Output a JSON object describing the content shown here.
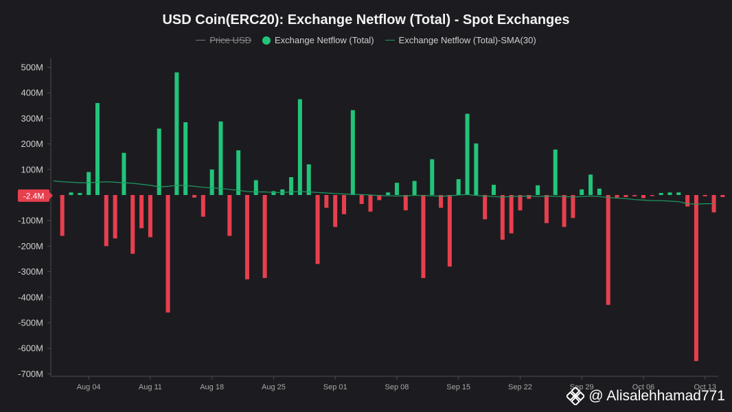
{
  "chart_data": {
    "type": "bar",
    "title": "USD Coin(ERC20): Exchange Netflow (Total) - Spot Exchanges",
    "legend": [
      {
        "label": "Price USD",
        "hidden": true
      },
      {
        "label": "Exchange Netflow (Total)"
      },
      {
        "label": "Exchange Netflow (Total)-SMA(30)"
      }
    ],
    "ylim": [
      -720,
      540
    ],
    "yticks": [
      500,
      400,
      300,
      200,
      100,
      -100,
      -200,
      -300,
      -400,
      -500,
      -600,
      -700
    ],
    "ytick_labels": [
      "500M",
      "400M",
      "300M",
      "200M",
      "100M",
      "-100M",
      "-200M",
      "-300M",
      "-400M",
      "-500M",
      "-600M",
      "-700M"
    ],
    "current_value_label": "-2.4M",
    "x_labels": [
      {
        "label": "Aug 04",
        "day": 4
      },
      {
        "label": "Aug 11",
        "day": 11
      },
      {
        "label": "Aug 18",
        "day": 18
      },
      {
        "label": "Aug 25",
        "day": 25
      },
      {
        "label": "Sep 01",
        "day": 32
      },
      {
        "label": "Sep 08",
        "day": 39
      },
      {
        "label": "Sep 15",
        "day": 46
      },
      {
        "label": "Sep 22",
        "day": 53
      },
      {
        "label": "Sep 29",
        "day": 60
      },
      {
        "label": "Oct 06",
        "day": 67
      },
      {
        "label": "Oct 13",
        "day": 74
      }
    ],
    "x_range_days": [
      -0.3,
      75.5
    ],
    "series_netflow": {
      "name": "Exchange Netflow (Total)",
      "unit": "M USD",
      "start_day": 1,
      "values": [
        -160,
        10,
        8,
        90,
        360,
        -200,
        -170,
        165,
        -230,
        -130,
        -165,
        260,
        -460,
        480,
        285,
        -10,
        -85,
        100,
        288,
        -160,
        175,
        -330,
        58,
        -325,
        15,
        22,
        70,
        375,
        120,
        -270,
        -50,
        -125,
        -75,
        332,
        -35,
        -65,
        -20,
        10,
        48,
        -60,
        55,
        -325,
        140,
        -50,
        -280,
        62,
        318,
        202,
        -95,
        40,
        -175,
        -150,
        -60,
        -15,
        38,
        -110,
        178,
        -125,
        -90,
        22,
        80,
        25,
        -430,
        -10,
        -8,
        -5,
        -12,
        -3,
        8,
        10,
        10,
        -45,
        -650,
        -5,
        -68,
        -8
      ]
    },
    "series_sma": {
      "name": "Exchange Netflow (Total)-SMA(30)",
      "start_day": 0,
      "values": [
        55,
        52,
        50,
        48,
        48,
        50,
        52,
        50,
        48,
        46,
        42,
        38,
        32,
        34,
        38,
        37,
        34,
        30,
        28,
        26,
        22,
        18,
        14,
        12,
        12,
        10,
        10,
        12,
        14,
        12,
        10,
        8,
        6,
        4,
        3,
        2,
        0,
        -2,
        -3,
        -4,
        -3,
        -2,
        -2,
        -3,
        -5,
        -3,
        0,
        2,
        -2,
        -4,
        -6,
        -8,
        -6,
        -5,
        -4,
        -6,
        -4,
        -5,
        -6,
        -8,
        -6,
        -4,
        -6,
        -10,
        -12,
        -14,
        -18,
        -20,
        -22,
        -22,
        -24,
        -26,
        -34,
        -36,
        -34,
        -34
      ]
    },
    "colors": {
      "positive": "#22c47a",
      "negative": "#e83f4e",
      "sma": "#1f9d63",
      "current_label_bg": "#e83f4e"
    },
    "grid": false
  },
  "watermark": {
    "text": "@ Alisalehhamad771",
    "icon": "binance-logo-icon"
  }
}
